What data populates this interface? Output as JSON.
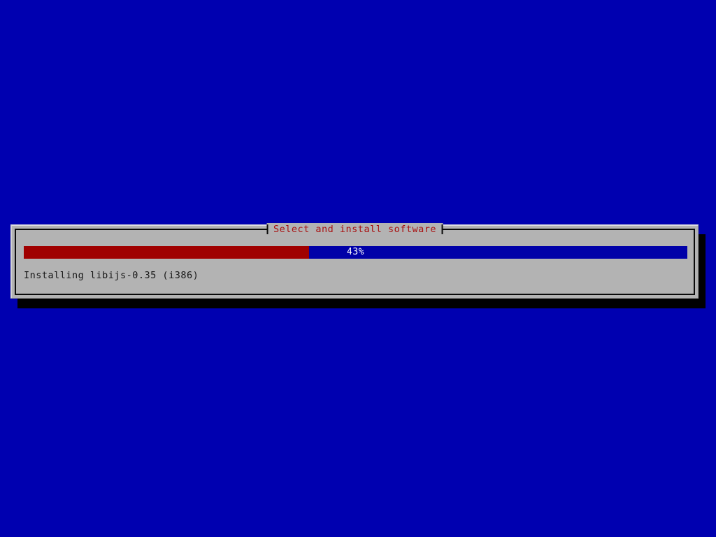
{
  "screen": {
    "background_color": "#0000b0"
  },
  "dialog": {
    "title": "Select and install software",
    "title_color": "#a81010",
    "background_color": "#b3b3b3",
    "border_color": "#0a0a0a",
    "shadow_color": "#000000",
    "progress_bar": {
      "percent": 43,
      "label": "43%",
      "fill_color": "#a00000",
      "track_color": "#0000a8",
      "label_color": "#ffffff"
    },
    "status_text": "Installing libijs-0.35 (i386)"
  }
}
